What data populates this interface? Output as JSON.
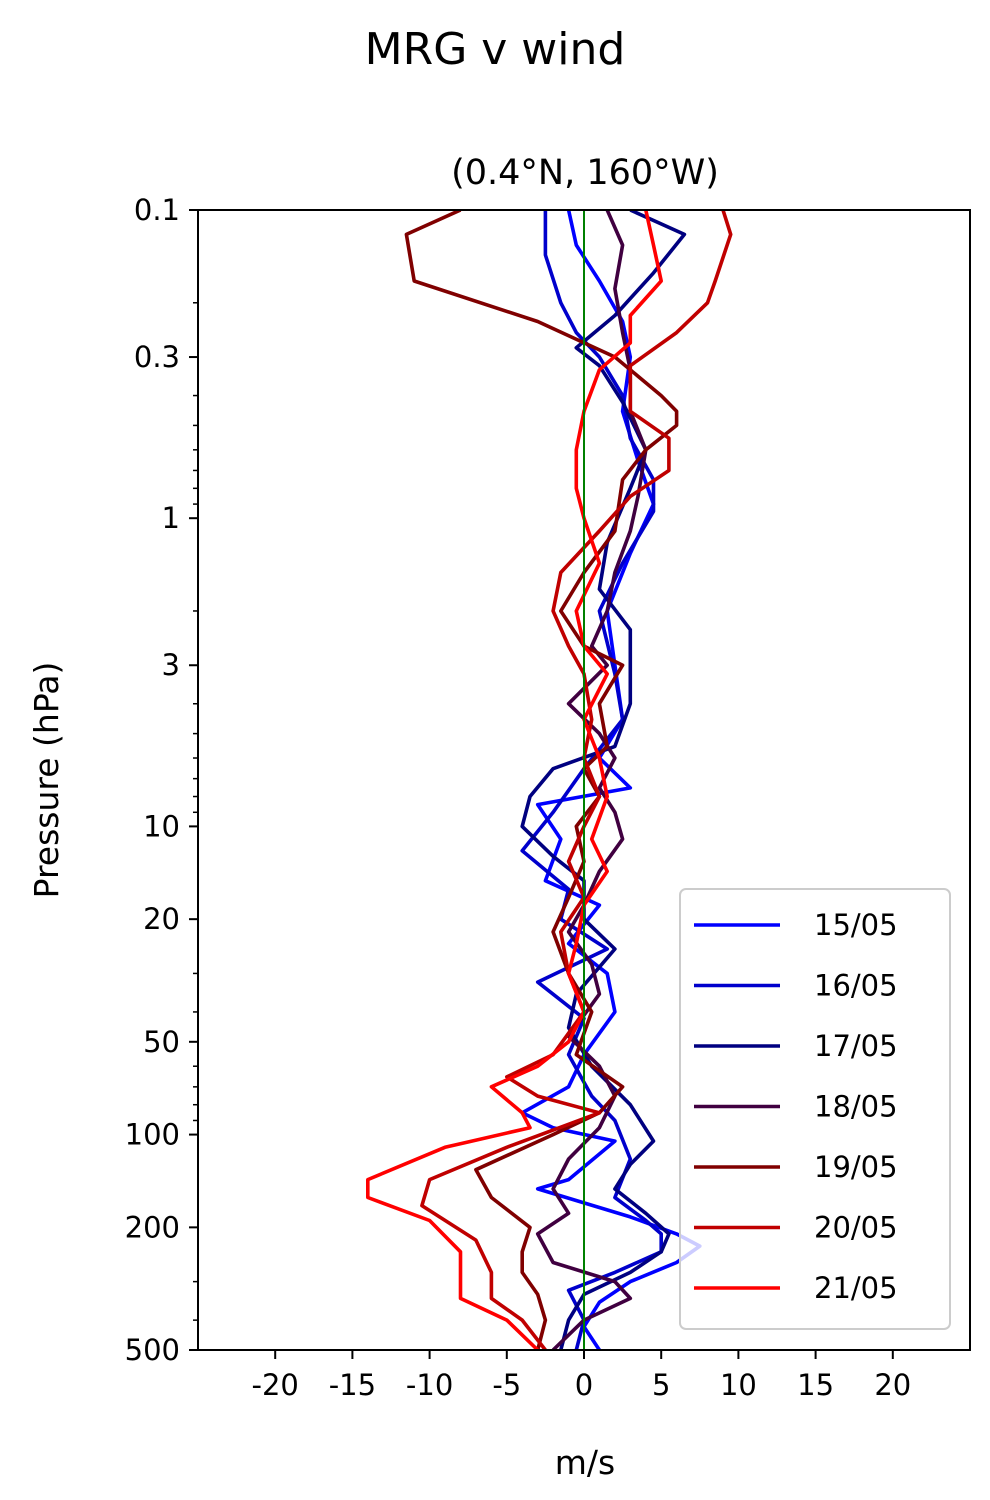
{
  "suptitle": "MRG v wind",
  "chart_data": {
    "type": "line",
    "title": "(0.4°N, 160°W)",
    "xlabel": "m/s",
    "ylabel": "Pressure (hPa)",
    "xlim": [
      -25,
      25
    ],
    "ylim": [
      500,
      0.1
    ],
    "y_scale": "log",
    "x_ticks": [
      -20,
      -15,
      -10,
      -5,
      0,
      5,
      10,
      15,
      20
    ],
    "x_tick_labels": [
      "-20",
      "-15",
      "-10",
      "-5",
      "0",
      "5",
      "10",
      "15",
      "20"
    ],
    "y_ticks": [
      0.1,
      0.3,
      1,
      3,
      10,
      20,
      50,
      100,
      200,
      500
    ],
    "y_tick_labels": [
      "0.1",
      "0.3",
      "1",
      "3",
      "10",
      "20",
      "50",
      "100",
      "200",
      "500"
    ],
    "reference_line": {
      "x": 0,
      "color": "#008000"
    },
    "legend_position": "lower-right",
    "series": [
      {
        "name": "15/05",
        "color": "#0000ff",
        "points": [
          [
            -1,
            0.1
          ],
          [
            -0.5,
            0.13
          ],
          [
            1,
            0.17
          ],
          [
            2.5,
            0.23
          ],
          [
            3,
            0.3
          ],
          [
            2.5,
            0.45
          ],
          [
            3.5,
            0.65
          ],
          [
            4.5,
            0.9
          ],
          [
            3,
            1.3
          ],
          [
            1.5,
            2.0
          ],
          [
            2,
            3.0
          ],
          [
            2.5,
            4.5
          ],
          [
            1,
            6
          ],
          [
            3,
            7.5
          ],
          [
            -3,
            8.5
          ],
          [
            -1.5,
            11
          ],
          [
            -2.5,
            15
          ],
          [
            1,
            18
          ],
          [
            -1,
            24
          ],
          [
            1.5,
            30
          ],
          [
            2,
            40
          ],
          [
            0,
            55
          ],
          [
            -1,
            70
          ],
          [
            -4,
            85
          ],
          [
            -2,
            95
          ],
          [
            2,
            105
          ],
          [
            -1,
            140
          ],
          [
            -3,
            150
          ],
          [
            3,
            185
          ],
          [
            6,
            210
          ],
          [
            7.5,
            230
          ],
          [
            6,
            260
          ],
          [
            3,
            300
          ],
          [
            1,
            350
          ],
          [
            0,
            420
          ],
          [
            1,
            500
          ]
        ]
      },
      {
        "name": "16/05",
        "color": "#0000cc",
        "points": [
          [
            -2.5,
            0.1
          ],
          [
            -2.5,
            0.14
          ],
          [
            -1.5,
            0.2
          ],
          [
            -0.5,
            0.25
          ],
          [
            1,
            0.3
          ],
          [
            2.5,
            0.4
          ],
          [
            3,
            0.55
          ],
          [
            4.5,
            0.75
          ],
          [
            4.5,
            0.95
          ],
          [
            2.5,
            1.4
          ],
          [
            1,
            2.0
          ],
          [
            2,
            3.2
          ],
          [
            2.5,
            4.5
          ],
          [
            0,
            6.5
          ],
          [
            -2,
            9
          ],
          [
            -4,
            12
          ],
          [
            -1,
            16
          ],
          [
            -1.5,
            20
          ],
          [
            1.5,
            25
          ],
          [
            -3,
            32
          ],
          [
            0,
            42
          ],
          [
            -1,
            55
          ],
          [
            0.5,
            75
          ],
          [
            2,
            90
          ],
          [
            3,
            120
          ],
          [
            2,
            160
          ],
          [
            4,
            190
          ],
          [
            5,
            210
          ],
          [
            5,
            240
          ],
          [
            2,
            280
          ],
          [
            -1,
            320
          ],
          [
            0,
            400
          ],
          [
            -0.5,
            500
          ]
        ]
      },
      {
        "name": "17/05",
        "color": "#000080",
        "points": [
          [
            3,
            0.1
          ],
          [
            6.5,
            0.12
          ],
          [
            4.5,
            0.16
          ],
          [
            2,
            0.22
          ],
          [
            -0.5,
            0.28
          ],
          [
            1,
            0.32
          ],
          [
            2.5,
            0.42
          ],
          [
            4,
            0.6
          ],
          [
            3,
            0.8
          ],
          [
            1.5,
            1.2
          ],
          [
            1,
            1.7
          ],
          [
            3,
            2.3
          ],
          [
            3,
            3.0
          ],
          [
            3,
            4
          ],
          [
            2,
            5.5
          ],
          [
            -2,
            6.5
          ],
          [
            -3.5,
            8
          ],
          [
            -4,
            10
          ],
          [
            -2,
            12.5
          ],
          [
            0,
            15
          ],
          [
            0,
            20
          ],
          [
            2,
            25
          ],
          [
            -0.5,
            35
          ],
          [
            -1,
            45
          ],
          [
            0.5,
            60
          ],
          [
            3,
            80
          ],
          [
            4.5,
            105
          ],
          [
            3,
            125
          ],
          [
            2,
            150
          ],
          [
            4,
            180
          ],
          [
            5.5,
            210
          ],
          [
            5,
            240
          ],
          [
            3,
            280
          ],
          [
            0,
            330
          ],
          [
            -1,
            400
          ],
          [
            -1.5,
            500
          ]
        ]
      },
      {
        "name": "18/05",
        "color": "#400040",
        "points": [
          [
            1.5,
            0.1
          ],
          [
            2.5,
            0.13
          ],
          [
            2,
            0.18
          ],
          [
            2.5,
            0.25
          ],
          [
            3,
            0.33
          ],
          [
            3,
            0.45
          ],
          [
            4,
            0.6
          ],
          [
            3.5,
            0.85
          ],
          [
            3,
            1.1
          ],
          [
            2,
            1.5
          ],
          [
            1.5,
            2.0
          ],
          [
            0.5,
            2.6
          ],
          [
            1.5,
            3.0
          ],
          [
            -1,
            4
          ],
          [
            1,
            5
          ],
          [
            2,
            6
          ],
          [
            1,
            7.5
          ],
          [
            2,
            9
          ],
          [
            2.5,
            11
          ],
          [
            1,
            14
          ],
          [
            0,
            18
          ],
          [
            -1,
            22
          ],
          [
            0.5,
            28
          ],
          [
            1,
            35
          ],
          [
            -1,
            48
          ],
          [
            1,
            60
          ],
          [
            2,
            75
          ],
          [
            1,
            95
          ],
          [
            -1,
            120
          ],
          [
            -2,
            150
          ],
          [
            -1,
            180
          ],
          [
            -3,
            210
          ],
          [
            -2,
            260
          ],
          [
            2,
            300
          ],
          [
            3,
            340
          ],
          [
            0,
            400
          ],
          [
            -2,
            500
          ]
        ]
      },
      {
        "name": "19/05",
        "color": "#800000",
        "points": [
          [
            -8,
            0.1
          ],
          [
            -11.5,
            0.12
          ],
          [
            -11,
            0.17
          ],
          [
            -3,
            0.23
          ],
          [
            2,
            0.3
          ],
          [
            5,
            0.4
          ],
          [
            6,
            0.45
          ],
          [
            6,
            0.5
          ],
          [
            4,
            0.6
          ],
          [
            2.5,
            0.75
          ],
          [
            2,
            1.1
          ],
          [
            0,
            1.5
          ],
          [
            -1.5,
            2.0
          ],
          [
            0,
            2.6
          ],
          [
            2.5,
            3.0
          ],
          [
            1,
            4
          ],
          [
            1.5,
            5.5
          ],
          [
            0,
            6.5
          ],
          [
            1,
            8
          ],
          [
            -0.5,
            10
          ],
          [
            0,
            13
          ],
          [
            -1,
            17
          ],
          [
            -2,
            22
          ],
          [
            -1,
            30
          ],
          [
            0.5,
            40
          ],
          [
            -0.5,
            55
          ],
          [
            2.5,
            70
          ],
          [
            1,
            85
          ],
          [
            -2,
            100
          ],
          [
            -7,
            130
          ],
          [
            -6,
            160
          ],
          [
            -3.5,
            200
          ],
          [
            -4,
            240
          ],
          [
            -4,
            280
          ],
          [
            -3,
            330
          ],
          [
            -2.5,
            400
          ],
          [
            -3,
            500
          ]
        ]
      },
      {
        "name": "20/05",
        "color": "#c00000",
        "points": [
          [
            9,
            0.1
          ],
          [
            9.5,
            0.12
          ],
          [
            8.5,
            0.17
          ],
          [
            8,
            0.2
          ],
          [
            6,
            0.25
          ],
          [
            3,
            0.32
          ],
          [
            3,
            0.45
          ],
          [
            5.5,
            0.55
          ],
          [
            5.5,
            0.7
          ],
          [
            3,
            0.85
          ],
          [
            1,
            1.1
          ],
          [
            -1.5,
            1.5
          ],
          [
            -2,
            2.0
          ],
          [
            -1,
            2.6
          ],
          [
            0,
            3.2
          ],
          [
            0.5,
            4.5
          ],
          [
            0,
            6
          ],
          [
            1,
            8
          ],
          [
            0,
            10
          ],
          [
            -1,
            13
          ],
          [
            0,
            17
          ],
          [
            -1.5,
            22
          ],
          [
            -1,
            30
          ],
          [
            0,
            40
          ],
          [
            -2,
            55
          ],
          [
            -5,
            65
          ],
          [
            -3,
            75
          ],
          [
            1,
            85
          ],
          [
            -5,
            110
          ],
          [
            -10,
            140
          ],
          [
            -10.5,
            170
          ],
          [
            -7,
            220
          ],
          [
            -6,
            280
          ],
          [
            -6,
            340
          ],
          [
            -4,
            400
          ],
          [
            -2.5,
            500
          ]
        ]
      },
      {
        "name": "21/05",
        "color": "#ff0000",
        "points": [
          [
            4,
            0.1
          ],
          [
            4.5,
            0.13
          ],
          [
            5,
            0.17
          ],
          [
            3,
            0.22
          ],
          [
            3,
            0.27
          ],
          [
            1,
            0.33
          ],
          [
            0,
            0.45
          ],
          [
            -0.5,
            0.6
          ],
          [
            -0.5,
            0.8
          ],
          [
            0,
            1.0
          ],
          [
            1,
            1.4
          ],
          [
            -0.5,
            2.0
          ],
          [
            0,
            2.6
          ],
          [
            1.5,
            3.2
          ],
          [
            0,
            4.5
          ],
          [
            1,
            6
          ],
          [
            1.5,
            8
          ],
          [
            0.5,
            11
          ],
          [
            1.5,
            14
          ],
          [
            0,
            18
          ],
          [
            -0.5,
            24
          ],
          [
            -1,
            30
          ],
          [
            0,
            40
          ],
          [
            -1,
            50
          ],
          [
            -3,
            60
          ],
          [
            -6,
            70
          ],
          [
            -4,
            85
          ],
          [
            -3.5,
            95
          ],
          [
            -9,
            110
          ],
          [
            -14,
            140
          ],
          [
            -14,
            160
          ],
          [
            -10,
            190
          ],
          [
            -8,
            240
          ],
          [
            -8,
            280
          ],
          [
            -8,
            340
          ],
          [
            -5,
            400
          ],
          [
            -3,
            500
          ]
        ]
      }
    ]
  }
}
